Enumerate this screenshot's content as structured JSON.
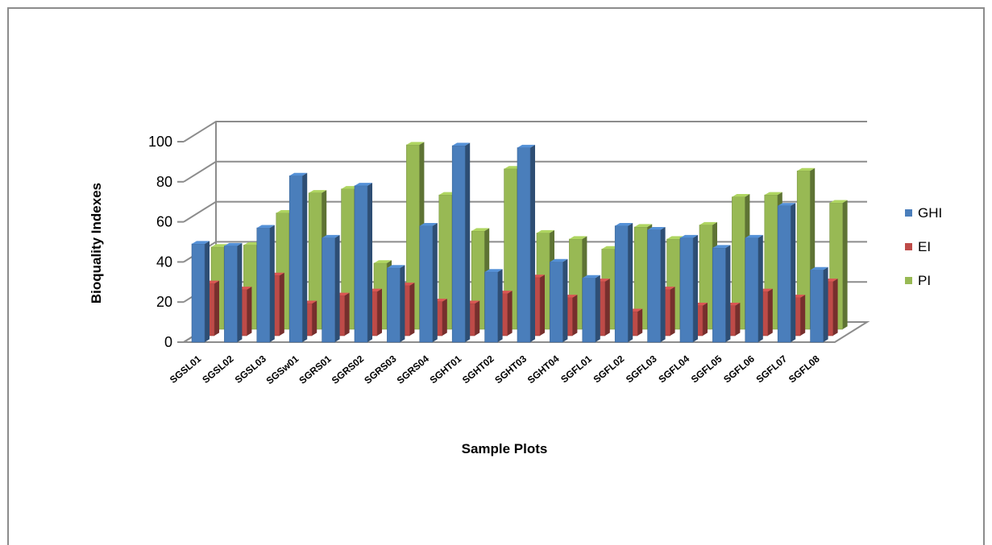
{
  "chart_data": {
    "type": "bar",
    "subtype": "3d-clustered-column",
    "xlabel": "Sample Plots",
    "ylabel": "Bioquality Indexes",
    "ylim": [
      0,
      100
    ],
    "yticks": [
      "0",
      "20",
      "40",
      "60",
      "80",
      "100"
    ],
    "grid": true,
    "legend_position": "right",
    "categories": [
      "SGSL01",
      "SGSL02",
      "SGSL03",
      "SGSw01",
      "SGRS01",
      "SGRS02",
      "SGRS03",
      "SGRS04",
      "SGHT01",
      "SGHT02",
      "SGHT03",
      "SGHT04",
      "SGFL01",
      "SGFL02",
      "SGFL03",
      "SGFL04",
      "SGFL05",
      "SGFL06",
      "SGFL07",
      "SGFL08"
    ],
    "series": [
      {
        "name": "GHI",
        "color": "#4a7ebb",
        "values": [
          49,
          48,
          57,
          83,
          52,
          78,
          37,
          58,
          98,
          35,
          97,
          40,
          32,
          58,
          56,
          52,
          47,
          52,
          68,
          36
        ]
      },
      {
        "name": "EI",
        "color": "#be4b48",
        "values": [
          26,
          23,
          30,
          16,
          20,
          22,
          25,
          17,
          16,
          21,
          29,
          19,
          27,
          12,
          23,
          15,
          15,
          22,
          19,
          27
        ]
      },
      {
        "name": "PI",
        "color": "#98b954",
        "values": [
          41,
          42,
          58,
          68,
          70,
          33,
          92,
          67,
          49,
          80,
          48,
          45,
          40,
          51,
          45,
          52,
          66,
          67,
          79,
          63
        ]
      }
    ]
  }
}
